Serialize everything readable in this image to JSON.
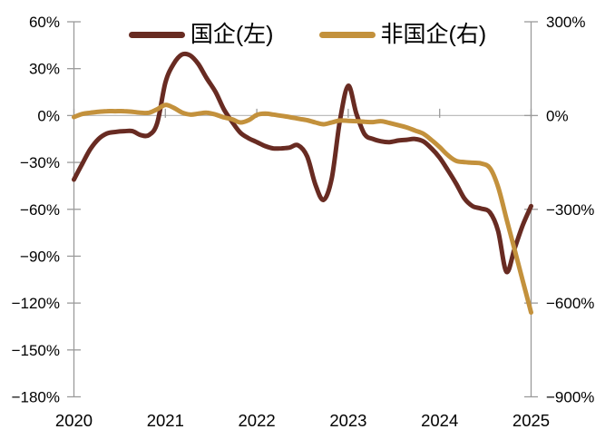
{
  "chart_data": {
    "type": "line",
    "title": "",
    "legend_position": "top-center",
    "grid": "zero-line-only",
    "legend": [
      {
        "label": "国企(左)",
        "color": "#682B22"
      },
      {
        "label": "非国企(右)",
        "color": "#C3913C"
      }
    ],
    "axes": {
      "left": {
        "min": -180,
        "max": 60,
        "tick_labels": [
          "60%",
          "30%",
          "0%",
          "−30%",
          "−60%",
          "−90%",
          "−120%",
          "−150%",
          "−180%"
        ]
      },
      "right": {
        "min": -900,
        "max": 300,
        "tick_labels": [
          "300%",
          "0%",
          "−300%",
          "−600%",
          "−900%"
        ]
      },
      "x": {
        "min": 2020,
        "max": 2025,
        "tick_labels": [
          "2020",
          "2021",
          "2022",
          "2023",
          "2024",
          "2025"
        ]
      }
    },
    "x": [
      2020.0,
      2020.09,
      2020.18,
      2020.27,
      2020.36,
      2020.45,
      2020.55,
      2020.64,
      2020.73,
      2020.82,
      2020.91,
      2021.0,
      2021.09,
      2021.18,
      2021.27,
      2021.36,
      2021.45,
      2021.55,
      2021.64,
      2021.73,
      2021.82,
      2021.91,
      2022.0,
      2022.09,
      2022.18,
      2022.27,
      2022.36,
      2022.45,
      2022.55,
      2022.64,
      2022.73,
      2022.82,
      2022.91,
      2023.0,
      2023.09,
      2023.18,
      2023.27,
      2023.36,
      2023.45,
      2023.55,
      2023.64,
      2023.73,
      2023.82,
      2023.91,
      2024.0,
      2024.09,
      2024.18,
      2024.27,
      2024.36,
      2024.45,
      2024.55,
      2024.64,
      2024.73,
      2024.82,
      2024.91,
      2025.0
    ],
    "series": [
      {
        "name": "国企(左)",
        "axis": "left",
        "color": "#682B22",
        "values": [
          -41,
          -31,
          -21.5,
          -15,
          -11.5,
          -10.5,
          -10,
          -10,
          -12.5,
          -12.5,
          -5,
          21,
          33,
          39,
          38.5,
          33,
          24,
          15,
          4,
          -4,
          -11,
          -14.5,
          -17,
          -19.5,
          -21,
          -21,
          -20.5,
          -19,
          -26,
          -44,
          -54,
          -40,
          -3,
          19,
          1,
          -12,
          -15,
          -16.5,
          -17,
          -16,
          -15.5,
          -15,
          -16.5,
          -21,
          -27,
          -35,
          -43.5,
          -53,
          -58,
          -59.5,
          -62,
          -74,
          -100,
          -85,
          -70,
          -58
        ]
      },
      {
        "name": "非国企(右)",
        "axis": "right",
        "color": "#C3913C",
        "values": [
          -5,
          5,
          9,
          12,
          14,
          14,
          14,
          12,
          9,
          9,
          20,
          34,
          25,
          10,
          3,
          6,
          9,
          3,
          -6,
          -12,
          -22,
          -15,
          2,
          6,
          3,
          -1,
          -5,
          -10,
          -15,
          -22,
          -28,
          -22,
          -16,
          -17,
          -18,
          -20,
          -21,
          -18,
          -24,
          -31,
          -38,
          -48,
          -58,
          -78,
          -101,
          -127,
          -145,
          -149,
          -151,
          -153,
          -168,
          -229,
          -330,
          -430,
          -530,
          -630
        ]
      }
    ],
    "colors": {
      "axis_line": "#9B9B9B",
      "zero_line": "#BDBDBD",
      "tick_text": "#000000"
    }
  }
}
